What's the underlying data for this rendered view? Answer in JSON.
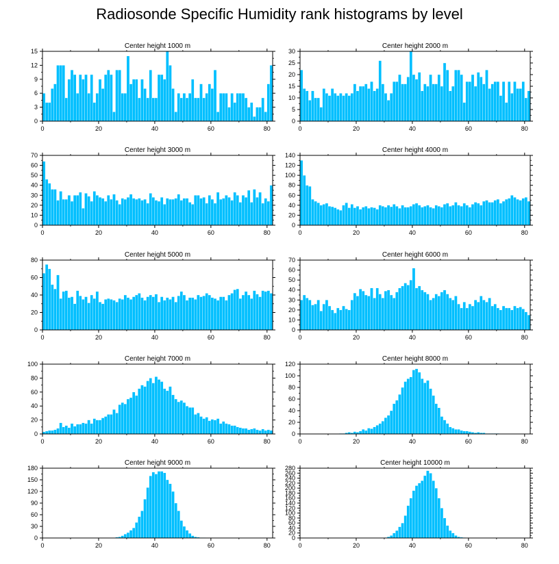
{
  "title": "Radiosonde Specific Humidity rank histograms by level",
  "style": {
    "bar_color": "#00BFFF",
    "bar_edge": "#ffffff",
    "axis_color": "#000000"
  },
  "chart_data": [
    {
      "type": "bar",
      "title": "Center height 1000 m",
      "xlabel": "",
      "ylabel": "",
      "xlim": [
        0,
        82
      ],
      "ylim": [
        0,
        15
      ],
      "yticks": [
        0,
        3,
        6,
        9,
        12,
        15
      ],
      "xticks": [
        0,
        20,
        40,
        60,
        80
      ],
      "values": [
        6,
        4,
        4,
        7,
        8,
        12,
        12,
        12,
        5,
        9,
        11,
        10,
        6,
        10,
        9,
        10,
        6,
        10,
        4,
        6,
        9,
        7,
        10,
        11,
        10,
        2,
        11,
        11,
        6,
        6,
        14,
        8,
        9,
        9,
        5,
        9,
        7,
        5,
        11,
        5,
        5,
        10,
        10,
        9,
        15,
        12,
        7,
        2,
        6,
        5,
        6,
        5,
        6,
        9,
        5,
        5,
        8,
        5,
        6,
        8,
        7,
        11,
        2,
        6,
        6,
        6,
        3,
        6,
        4,
        6,
        6,
        6,
        5,
        3,
        4,
        1,
        3,
        3,
        5,
        2,
        8,
        12
      ]
    },
    {
      "type": "bar",
      "title": "Center height 2000 m",
      "xlabel": "",
      "ylabel": "",
      "xlim": [
        0,
        82
      ],
      "ylim": [
        0,
        30
      ],
      "yticks": [
        0,
        5,
        10,
        15,
        20,
        25,
        30
      ],
      "xticks": [
        0,
        20,
        40,
        60,
        80
      ],
      "values": [
        22,
        14,
        13,
        9,
        13,
        10,
        10,
        6,
        14,
        12,
        11,
        14,
        12,
        11,
        12,
        11,
        12,
        11,
        12,
        16,
        13,
        15,
        15,
        16,
        14,
        17,
        13,
        14,
        26,
        16,
        12,
        9,
        12,
        17,
        17,
        20,
        16,
        16,
        19,
        30,
        20,
        18,
        21,
        13,
        16,
        15,
        20,
        16,
        16,
        20,
        15,
        25,
        22,
        13,
        15,
        22,
        22,
        20,
        8,
        17,
        17,
        20,
        15,
        21,
        19,
        16,
        22,
        14,
        16,
        17,
        17,
        11,
        17,
        8,
        17,
        12,
        17,
        14,
        14,
        17,
        10,
        13
      ]
    },
    {
      "type": "bar",
      "title": "Center height 3000 m",
      "xlabel": "",
      "ylabel": "",
      "xlim": [
        0,
        82
      ],
      "ylim": [
        0,
        70
      ],
      "yticks": [
        0,
        10,
        20,
        30,
        40,
        50,
        60,
        70
      ],
      "xticks": [
        0,
        20,
        40,
        60,
        80
      ],
      "values": [
        64,
        46,
        42,
        36,
        36,
        25,
        34,
        26,
        26,
        30,
        24,
        30,
        30,
        33,
        17,
        32,
        29,
        24,
        34,
        30,
        28,
        27,
        24,
        30,
        26,
        31,
        25,
        21,
        27,
        26,
        28,
        31,
        27,
        26,
        27,
        25,
        26,
        22,
        32,
        28,
        25,
        24,
        28,
        21,
        27,
        26,
        26,
        27,
        31,
        25,
        27,
        27,
        23,
        21,
        30,
        30,
        27,
        28,
        22,
        30,
        26,
        22,
        33,
        26,
        27,
        30,
        28,
        25,
        33,
        30,
        23,
        30,
        28,
        35,
        23,
        36,
        28,
        33,
        22,
        27,
        24,
        40
      ]
    },
    {
      "type": "bar",
      "title": "Center height 4000 m",
      "xlabel": "",
      "ylabel": "",
      "xlim": [
        0,
        82
      ],
      "ylim": [
        0,
        140
      ],
      "yticks": [
        0,
        20,
        40,
        60,
        80,
        100,
        120,
        140
      ],
      "xticks": [
        0,
        20,
        40,
        60,
        80
      ],
      "values": [
        130,
        100,
        80,
        78,
        52,
        48,
        45,
        40,
        42,
        44,
        38,
        37,
        35,
        32,
        30,
        40,
        45,
        35,
        42,
        35,
        38,
        32,
        36,
        38,
        34,
        36,
        35,
        32,
        40,
        38,
        36,
        40,
        37,
        42,
        38,
        34,
        40,
        36,
        36,
        38,
        42,
        44,
        40,
        36,
        38,
        40,
        36,
        34,
        40,
        38,
        36,
        42,
        44,
        38,
        40,
        46,
        40,
        38,
        44,
        40,
        36,
        42,
        46,
        44,
        40,
        48,
        50,
        46,
        46,
        50,
        52,
        44,
        48,
        52,
        54,
        60,
        56,
        52,
        50,
        54,
        56,
        48
      ]
    },
    {
      "type": "bar",
      "title": "Center height 5000 m",
      "xlabel": "",
      "ylabel": "",
      "xlim": [
        0,
        82
      ],
      "ylim": [
        0,
        80
      ],
      "yticks": [
        0,
        20,
        40,
        60,
        80
      ],
      "xticks": [
        0,
        20,
        40,
        60,
        80
      ],
      "values": [
        65,
        75,
        70,
        52,
        47,
        63,
        36,
        44,
        45,
        37,
        38,
        30,
        45,
        39,
        35,
        38,
        31,
        40,
        36,
        44,
        32,
        30,
        35,
        36,
        35,
        34,
        32,
        36,
        35,
        40,
        37,
        35,
        38,
        40,
        42,
        37,
        34,
        38,
        40,
        38,
        41,
        32,
        38,
        34,
        37,
        35,
        38,
        32,
        39,
        44,
        40,
        34,
        37,
        37,
        35,
        40,
        38,
        39,
        42,
        40,
        37,
        36,
        34,
        38,
        38,
        34,
        40,
        42,
        46,
        47,
        36,
        40,
        44,
        40,
        36,
        45,
        41,
        38,
        45,
        44,
        45,
        42
      ]
    },
    {
      "type": "bar",
      "title": "Center height 6000 m",
      "xlabel": "",
      "ylabel": "",
      "xlim": [
        0,
        82
      ],
      "ylim": [
        0,
        70
      ],
      "yticks": [
        0,
        10,
        20,
        30,
        40,
        50,
        60,
        70
      ],
      "xticks": [
        0,
        20,
        40,
        60,
        80
      ],
      "values": [
        30,
        35,
        32,
        30,
        25,
        26,
        30,
        19,
        26,
        30,
        24,
        20,
        17,
        22,
        20,
        24,
        21,
        20,
        30,
        37,
        34,
        41,
        39,
        35,
        34,
        42,
        32,
        42,
        36,
        32,
        39,
        40,
        35,
        32,
        38,
        42,
        44,
        47,
        45,
        50,
        62,
        42,
        44,
        40,
        38,
        36,
        30,
        32,
        36,
        34,
        38,
        40,
        36,
        32,
        30,
        34,
        26,
        22,
        28,
        22,
        26,
        24,
        30,
        28,
        34,
        30,
        28,
        32,
        24,
        26,
        22,
        20,
        24,
        22,
        22,
        20,
        24,
        22,
        23,
        21,
        18,
        15
      ]
    },
    {
      "type": "bar",
      "title": "Center height 7000 m",
      "xlabel": "",
      "ylabel": "",
      "xlim": [
        0,
        82
      ],
      "ylim": [
        0,
        100
      ],
      "yticks": [
        0,
        20,
        40,
        60,
        80,
        100
      ],
      "xticks": [
        0,
        20,
        40,
        60,
        80
      ],
      "values": [
        3,
        4,
        5,
        5,
        6,
        8,
        16,
        10,
        12,
        9,
        15,
        11,
        14,
        14,
        16,
        15,
        20,
        15,
        22,
        20,
        20,
        23,
        25,
        28,
        28,
        35,
        30,
        42,
        45,
        43,
        50,
        52,
        60,
        55,
        65,
        70,
        68,
        76,
        80,
        73,
        82,
        78,
        75,
        65,
        62,
        68,
        56,
        50,
        46,
        48,
        45,
        40,
        38,
        38,
        28,
        30,
        25,
        22,
        24,
        19,
        21,
        20,
        22,
        15,
        18,
        15,
        14,
        12,
        12,
        10,
        9,
        8,
        8,
        6,
        7,
        8,
        6,
        5,
        7,
        5,
        6,
        5
      ]
    },
    {
      "type": "bar",
      "title": "Center height 8000 m",
      "xlabel": "",
      "ylabel": "",
      "xlim": [
        0,
        82
      ],
      "ylim": [
        0,
        120
      ],
      "yticks": [
        0,
        20,
        40,
        60,
        80,
        100,
        120
      ],
      "xticks": [
        0,
        20,
        40,
        60,
        80
      ],
      "values": [
        0,
        0,
        0,
        0,
        0,
        0,
        0,
        0,
        0,
        0,
        0,
        0,
        0,
        0,
        1,
        1,
        2,
        3,
        2,
        4,
        3,
        5,
        8,
        6,
        10,
        9,
        12,
        15,
        18,
        22,
        28,
        32,
        40,
        52,
        58,
        68,
        80,
        90,
        95,
        98,
        110,
        112,
        106,
        95,
        88,
        92,
        78,
        66,
        52,
        45,
        30,
        24,
        18,
        12,
        10,
        8,
        8,
        6,
        5,
        5,
        4,
        3,
        2,
        3,
        2,
        2,
        1,
        1,
        1,
        1,
        1,
        0,
        0,
        0,
        0,
        0,
        0,
        0,
        0,
        0,
        0,
        0
      ]
    },
    {
      "type": "bar",
      "title": "Center height 9000 m",
      "xlabel": "",
      "ylabel": "",
      "xlim": [
        0,
        82
      ],
      "ylim": [
        0,
        180
      ],
      "yticks": [
        0,
        30,
        60,
        90,
        120,
        150,
        180
      ],
      "xticks": [
        0,
        20,
        40,
        60,
        80
      ],
      "values": [
        0,
        0,
        0,
        0,
        0,
        0,
        0,
        0,
        0,
        0,
        0,
        0,
        0,
        0,
        0,
        0,
        0,
        0,
        0,
        0,
        0,
        0,
        0,
        0,
        0,
        0,
        2,
        3,
        6,
        10,
        14,
        20,
        26,
        40,
        55,
        70,
        100,
        130,
        160,
        170,
        165,
        172,
        172,
        168,
        150,
        140,
        120,
        90,
        70,
        45,
        30,
        20,
        12,
        6,
        3,
        2,
        1,
        1,
        0,
        0,
        0,
        0,
        0,
        0,
        0,
        0,
        0,
        0,
        0,
        0,
        0,
        0,
        0,
        0,
        0,
        0,
        0,
        0,
        0,
        0,
        0,
        0
      ]
    },
    {
      "type": "bar",
      "title": "Center height 10000 m",
      "xlabel": "",
      "ylabel": "",
      "xlim": [
        0,
        82
      ],
      "ylim": [
        0,
        280
      ],
      "yticks": [
        0,
        20,
        40,
        60,
        80,
        100,
        120,
        140,
        160,
        180,
        200,
        220,
        240,
        260,
        280
      ],
      "xticks": [
        0,
        20,
        40,
        60,
        80
      ],
      "values": [
        0,
        0,
        0,
        0,
        0,
        0,
        0,
        0,
        0,
        0,
        0,
        0,
        0,
        0,
        0,
        0,
        0,
        0,
        0,
        0,
        0,
        0,
        0,
        0,
        0,
        0,
        0,
        0,
        0,
        0,
        2,
        5,
        10,
        20,
        30,
        45,
        60,
        90,
        130,
        160,
        190,
        210,
        220,
        230,
        250,
        270,
        260,
        230,
        200,
        160,
        120,
        80,
        50,
        30,
        20,
        10,
        5,
        3,
        2,
        1,
        0,
        0,
        0,
        0,
        0,
        0,
        0,
        0,
        0,
        0,
        0,
        0,
        0,
        0,
        0,
        0,
        0,
        0,
        0,
        0,
        0,
        0
      ]
    }
  ]
}
